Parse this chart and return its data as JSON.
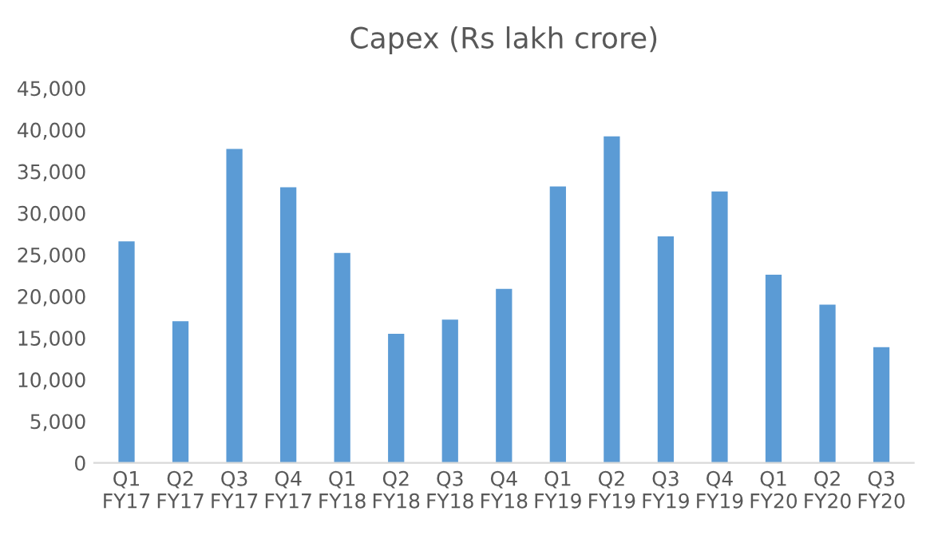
{
  "chart_data": {
    "type": "bar",
    "title": "Capex (Rs lakh crore)",
    "categories": [
      "Q1\nFY17",
      "Q2\nFY17",
      "Q3\nFY17",
      "Q4\nFY17",
      "Q1\nFY18",
      "Q2\nFY18",
      "Q3\nFY18",
      "Q4\nFY18",
      "Q1\nFY19",
      "Q2\nFY19",
      "Q3\nFY19",
      "Q4\nFY19",
      "Q1\nFY20",
      "Q2\nFY20",
      "Q3\nFY20"
    ],
    "values": [
      26600,
      17000,
      37700,
      33100,
      25200,
      15500,
      17200,
      20900,
      33200,
      39200,
      27200,
      32600,
      22600,
      19000,
      13900
    ],
    "color": "#5b9bd5",
    "ylim": [
      0,
      45000
    ],
    "yticks": [
      {
        "value": 0,
        "label": "0"
      },
      {
        "value": 5000,
        "label": "5,000"
      },
      {
        "value": 10000,
        "label": "10,000"
      },
      {
        "value": 15000,
        "label": "15,000"
      },
      {
        "value": 20000,
        "label": "20,000"
      },
      {
        "value": 25000,
        "label": "25,000"
      },
      {
        "value": 30000,
        "label": "30,000"
      },
      {
        "value": 35000,
        "label": "35,000"
      },
      {
        "value": 40000,
        "label": "40,000"
      },
      {
        "value": 45000,
        "label": "45,000"
      }
    ],
    "grid": false,
    "legend": false
  }
}
